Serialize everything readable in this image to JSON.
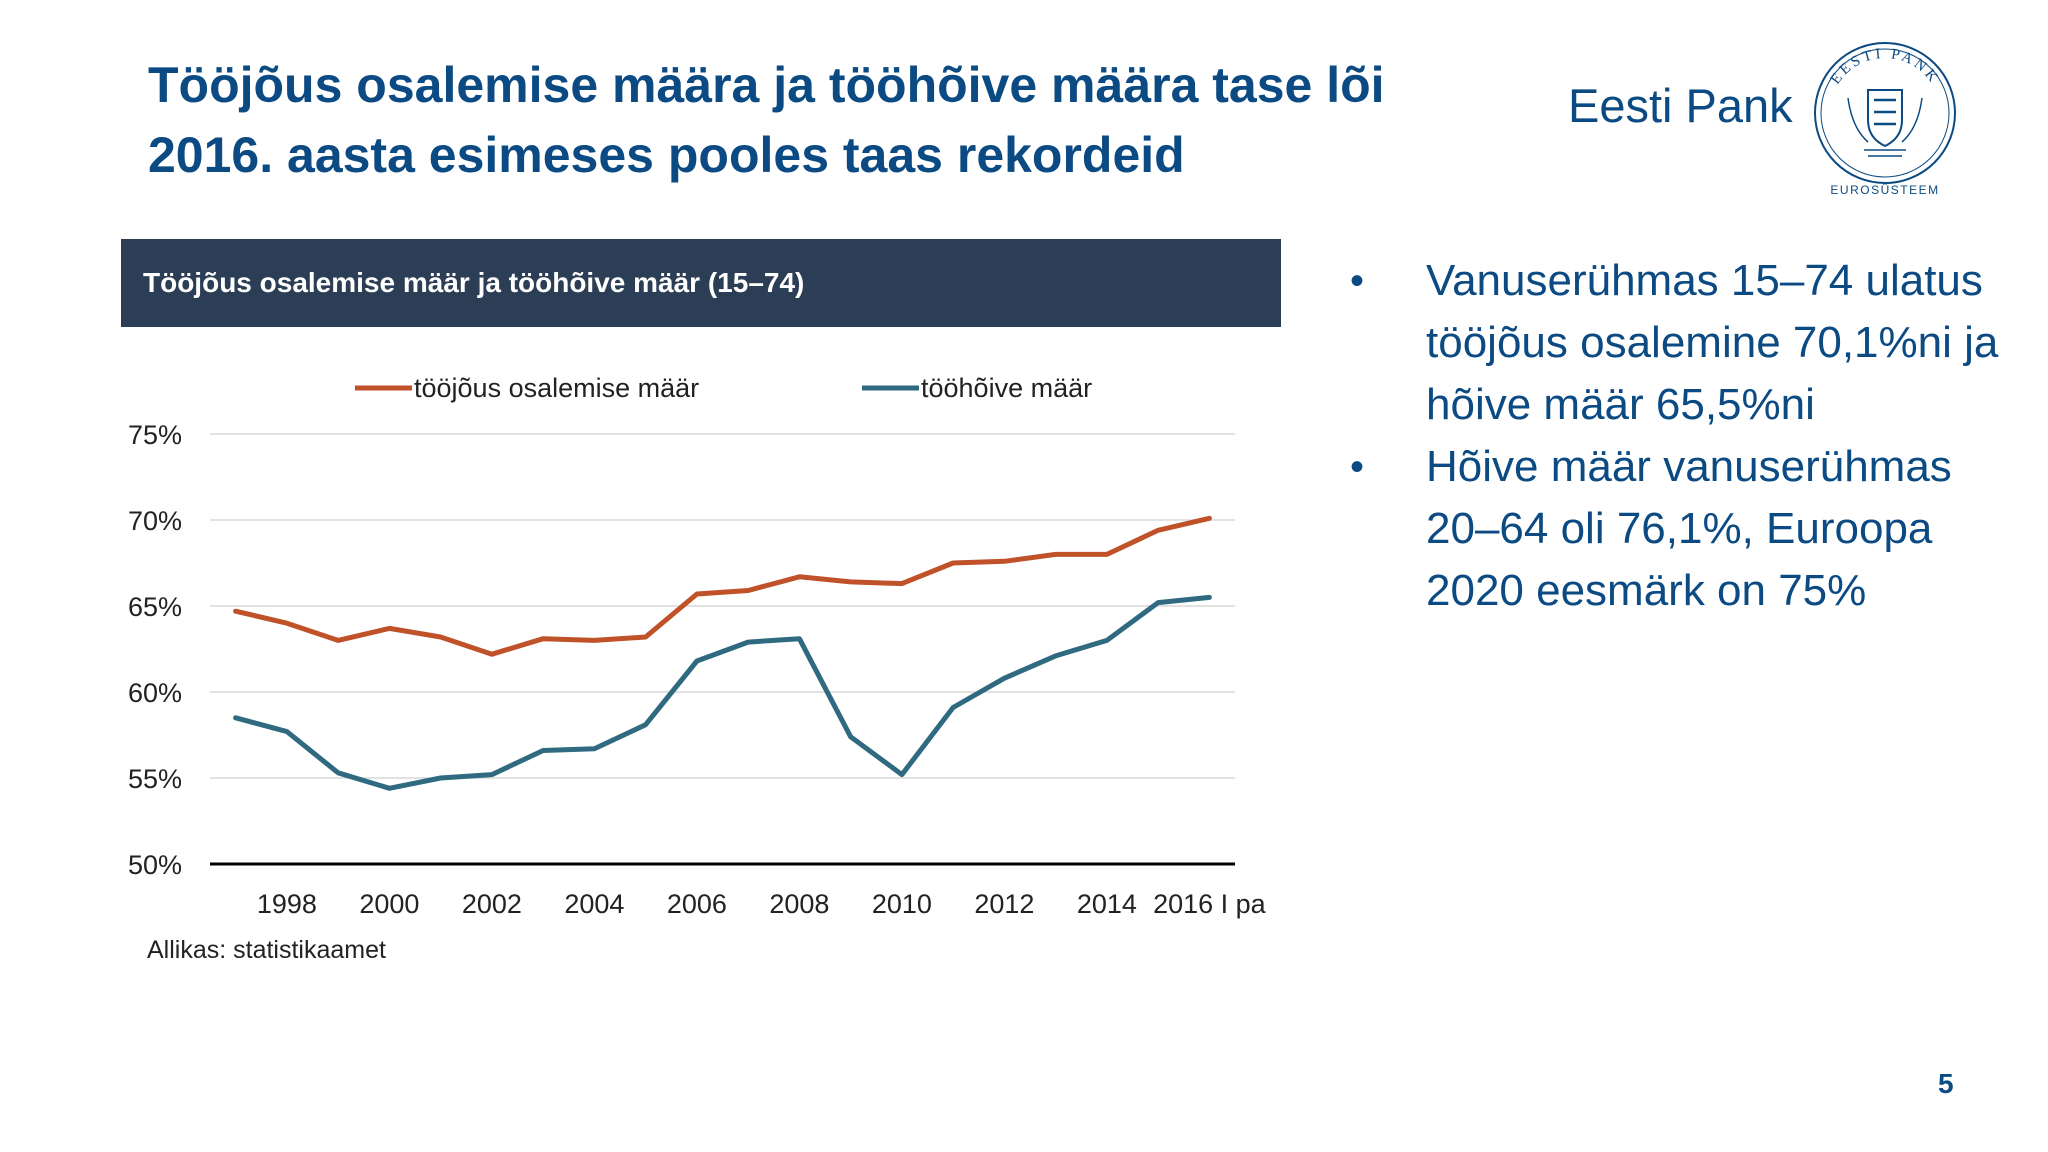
{
  "slide": {
    "title_lines": [
      "Tööjõus osalemise määra ja tööhõive määra tase lõi",
      "2016. aasta esimeses pooles taas rekordeid"
    ],
    "brand": "Eesti Pank",
    "seal_text_top": "EESTI PANK",
    "seal_text_bottom": "EUROSÜSTEEM",
    "chart_header": "Tööjõus osalemise määr ja tööhõive määr (15–74)",
    "source": "Allikas: statistikaamet",
    "bullets": [
      "Vanuserühmas 15–74 ulatus tööjõus osalemine 70,1%ni ja hõive määr 65,5%ni",
      "Hõive määr vanuserühmas 20–64 oli 76,1%, Euroopa 2020 eesmärk on 75%"
    ],
    "bullet_symbol": "•",
    "page_number": "5",
    "colors": {
      "title": "#0b4a82",
      "header_bg": "#2c3e55",
      "series_labour": "#c0522a",
      "series_employment": "#2f6a80"
    }
  },
  "chart_data": {
    "type": "line",
    "x": [
      "1997",
      "1998",
      "1999",
      "2000",
      "2001",
      "2002",
      "2003",
      "2004",
      "2005",
      "2006",
      "2007",
      "2008",
      "2009",
      "2010",
      "2011",
      "2012",
      "2013",
      "2014",
      "2015",
      "2016 I pa"
    ],
    "x_tick_labels": [
      "1998",
      "2000",
      "2002",
      "2004",
      "2006",
      "2008",
      "2010",
      "2012",
      "2014",
      "2016 I pa"
    ],
    "series": [
      {
        "name": "tööjõus osalemise määr",
        "color": "#c0522a",
        "values": [
          64.7,
          64.0,
          63.0,
          63.7,
          63.2,
          62.2,
          63.1,
          63.0,
          63.2,
          65.7,
          65.9,
          66.7,
          66.4,
          66.3,
          67.5,
          67.6,
          68.0,
          68.0,
          69.4,
          70.1
        ]
      },
      {
        "name": "tööhõive määr",
        "color": "#2f6a80",
        "values": [
          58.5,
          57.7,
          55.3,
          54.4,
          55.0,
          55.2,
          56.6,
          56.7,
          58.1,
          61.8,
          62.9,
          63.1,
          57.4,
          55.2,
          59.1,
          60.8,
          62.1,
          63.0,
          65.2,
          65.5
        ]
      }
    ],
    "ylim": [
      50,
      75
    ],
    "y_ticks": [
      "50%",
      "55%",
      "60%",
      "65%",
      "70%",
      "75%"
    ],
    "grid": true,
    "legend": "top"
  }
}
